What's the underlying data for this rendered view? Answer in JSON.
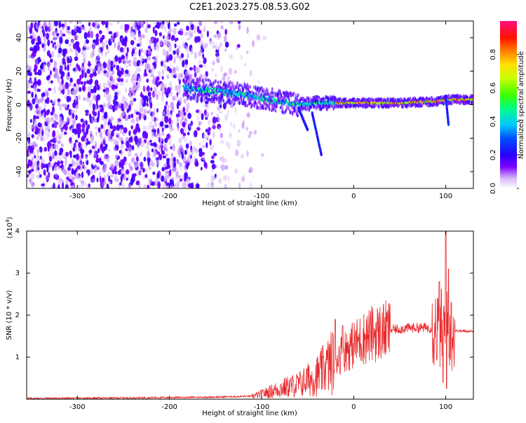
{
  "title": "C2E1.2023.275.08.53.G02",
  "colors": {
    "snr_line": "#e8282a",
    "axis": "#000000"
  },
  "colorbar": {
    "label": "Normalized spectral amplitude",
    "ticks": [
      "0.0",
      "0.2",
      "0.4",
      "0.6",
      "0.8"
    ],
    "tick_values": [
      0.0,
      0.2,
      0.4,
      0.6,
      0.8
    ],
    "range": [
      0,
      1
    ]
  },
  "chart_data": [
    {
      "type": "heatmap",
      "name": "spectrogram",
      "xlabel": "Height of straight line (km)",
      "ylabel": "Frequency (Hz)",
      "xlim": [
        -355,
        130
      ],
      "ylim": [
        -50,
        50
      ],
      "xticks": [
        -300,
        -200,
        -100,
        0,
        100
      ],
      "yticks": [
        -40,
        -20,
        0,
        20,
        40
      ],
      "xtick_labels": [
        "-300",
        "-200",
        "-100",
        "0",
        "100"
      ],
      "ytick_labels": [
        "-40",
        "-20",
        "0",
        "20",
        "40"
      ],
      "ridge": {
        "description_points": [
          [
            -185,
            10
          ],
          [
            -150,
            8
          ],
          [
            -120,
            6
          ],
          [
            -100,
            4
          ],
          [
            -80,
            2
          ],
          [
            -60,
            0
          ],
          [
            -40,
            1
          ],
          [
            -20,
            1
          ],
          [
            0,
            1
          ],
          [
            50,
            1
          ],
          [
            90,
            2
          ],
          [
            100,
            3
          ],
          [
            130,
            3
          ]
        ],
        "branches": [
          [
            [
              -60,
              -2
            ],
            [
              -50,
              -15
            ]
          ],
          [
            [
              -45,
              -5
            ],
            [
              -35,
              -30
            ]
          ],
          [
            [
              100,
              5
            ],
            [
              103,
              -12
            ]
          ]
        ]
      },
      "noise_region": [
        -355,
        -115
      ]
    },
    {
      "type": "line",
      "name": "snr",
      "xlabel": "Height of straight line (km)",
      "ylabel": "SNR (10 * v/v)",
      "yscale_label": "(x10",
      "yscale_exp": "4",
      "yscale_close": ")",
      "xlim": [
        -355,
        130
      ],
      "ylim": [
        0,
        4
      ],
      "xticks": [
        -300,
        -200,
        -100,
        0,
        100
      ],
      "yticks": [
        1,
        2,
        3,
        4
      ],
      "xtick_labels": [
        "-300",
        "-200",
        "-100",
        "0",
        "100"
      ],
      "ytick_labels": [
        "1",
        "2",
        "3",
        "4"
      ],
      "series": [
        {
          "envelope_x": [
            -355,
            -250,
            -150,
            -110,
            -100,
            -80,
            -60,
            -50,
            -40,
            -30,
            -25,
            -20,
            -15,
            -10,
            0,
            10,
            20,
            30,
            40,
            50,
            60,
            70,
            80,
            90,
            95,
            100,
            105,
            110,
            120,
            130
          ],
          "envelope_y": [
            0.02,
            0.03,
            0.05,
            0.07,
            0.12,
            0.25,
            0.35,
            0.45,
            0.55,
            0.75,
            0.85,
            0.95,
            1.05,
            1.15,
            1.3,
            1.45,
            1.55,
            1.6,
            1.65,
            1.67,
            1.7,
            1.7,
            1.7,
            1.7,
            1.68,
            1.65,
            1.62,
            1.63,
            1.62,
            1.62
          ],
          "spikes": [
            [
              -20,
              1.9
            ],
            [
              -12,
              1.75
            ],
            [
              -30,
              0.95
            ],
            [
              -50,
              0.75
            ],
            [
              93,
              2.8
            ],
            [
              100,
              4.0
            ],
            [
              103,
              3.1
            ],
            [
              106,
              2.3
            ],
            [
              97,
              0.4
            ],
            [
              101,
              0.25
            ]
          ]
        }
      ]
    }
  ]
}
